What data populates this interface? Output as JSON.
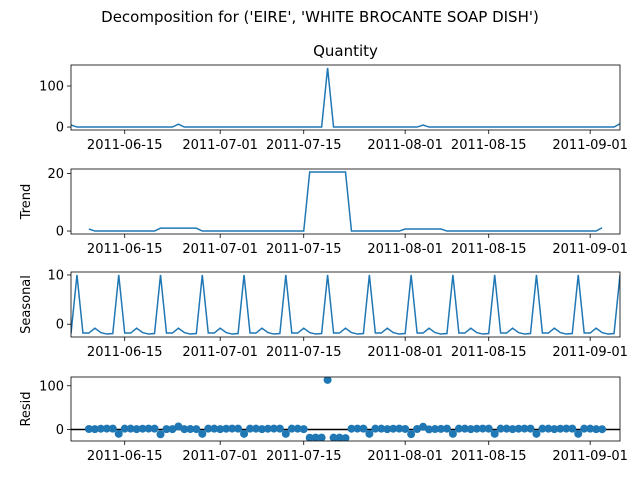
{
  "title": "Decomposition for ('EIRE', 'WHITE BROCANTE SOAP DISH')",
  "chart_data": [
    {
      "type": "line",
      "title": "Quantity",
      "color": "#1f77b4",
      "x": [
        "2011-06-06",
        "2011-06-07",
        "2011-06-08",
        "2011-06-09",
        "2011-06-10",
        "2011-06-11",
        "2011-06-12",
        "2011-06-13",
        "2011-06-14",
        "2011-06-15",
        "2011-06-16",
        "2011-06-17",
        "2011-06-18",
        "2011-06-19",
        "2011-06-20",
        "2011-06-21",
        "2011-06-22",
        "2011-06-23",
        "2011-06-24",
        "2011-06-25",
        "2011-06-26",
        "2011-06-27",
        "2011-06-28",
        "2011-06-29",
        "2011-06-30",
        "2011-07-01",
        "2011-07-02",
        "2011-07-03",
        "2011-07-04",
        "2011-07-05",
        "2011-07-06",
        "2011-07-07",
        "2011-07-08",
        "2011-07-09",
        "2011-07-10",
        "2011-07-11",
        "2011-07-12",
        "2011-07-13",
        "2011-07-14",
        "2011-07-15",
        "2011-07-16",
        "2011-07-17",
        "2011-07-18",
        "2011-07-19",
        "2011-07-20",
        "2011-07-21",
        "2011-07-22",
        "2011-07-23",
        "2011-07-24",
        "2011-07-25",
        "2011-07-26",
        "2011-07-27",
        "2011-07-28",
        "2011-07-29",
        "2011-07-30",
        "2011-07-31",
        "2011-08-01",
        "2011-08-02",
        "2011-08-03",
        "2011-08-04",
        "2011-08-05",
        "2011-08-06",
        "2011-08-07",
        "2011-08-08",
        "2011-08-09",
        "2011-08-10",
        "2011-08-11",
        "2011-08-12",
        "2011-08-13",
        "2011-08-14",
        "2011-08-15",
        "2011-08-16",
        "2011-08-17",
        "2011-08-18",
        "2011-08-19",
        "2011-08-20",
        "2011-08-21",
        "2011-08-22",
        "2011-08-23",
        "2011-08-24",
        "2011-08-25",
        "2011-08-26",
        "2011-08-27",
        "2011-08-28",
        "2011-08-29",
        "2011-08-30",
        "2011-08-31",
        "2011-09-01",
        "2011-09-02",
        "2011-09-03",
        "2011-09-04",
        "2011-09-05",
        "2011-09-06"
      ],
      "values": [
        5,
        0,
        0,
        0,
        0,
        0,
        0,
        0,
        0,
        0,
        0,
        0,
        0,
        0,
        0,
        0,
        0,
        0,
        7,
        0,
        0,
        0,
        0,
        0,
        0,
        0,
        0,
        0,
        0,
        0,
        0,
        0,
        0,
        0,
        0,
        0,
        0,
        0,
        0,
        0,
        0,
        0,
        0,
        144,
        0,
        0,
        0,
        0,
        0,
        0,
        0,
        0,
        0,
        0,
        0,
        0,
        0,
        0,
        0,
        5,
        0,
        0,
        0,
        0,
        0,
        0,
        0,
        0,
        0,
        0,
        0,
        0,
        0,
        0,
        0,
        0,
        0,
        0,
        0,
        0,
        0,
        0,
        0,
        0,
        0,
        0,
        0,
        0,
        0,
        0,
        0,
        0,
        8
      ],
      "xlim": [
        "2011-06-06",
        "2011-09-06"
      ],
      "xticks": [
        "2011-06-15",
        "2011-07-01",
        "2011-07-15",
        "2011-08-01",
        "2011-08-15",
        "2011-09-01"
      ],
      "ylim": [
        -7.2,
        151.2
      ],
      "yticks": [
        0,
        100
      ]
    },
    {
      "type": "line",
      "ylabel": "Trend",
      "color": "#1f77b4",
      "x": [
        "2011-06-06",
        "2011-06-07",
        "2011-06-08",
        "2011-06-09",
        "2011-06-10",
        "2011-06-11",
        "2011-06-12",
        "2011-06-13",
        "2011-06-14",
        "2011-06-15",
        "2011-06-16",
        "2011-06-17",
        "2011-06-18",
        "2011-06-19",
        "2011-06-20",
        "2011-06-21",
        "2011-06-22",
        "2011-06-23",
        "2011-06-24",
        "2011-06-25",
        "2011-06-26",
        "2011-06-27",
        "2011-06-28",
        "2011-06-29",
        "2011-06-30",
        "2011-07-01",
        "2011-07-02",
        "2011-07-03",
        "2011-07-04",
        "2011-07-05",
        "2011-07-06",
        "2011-07-07",
        "2011-07-08",
        "2011-07-09",
        "2011-07-10",
        "2011-07-11",
        "2011-07-12",
        "2011-07-13",
        "2011-07-14",
        "2011-07-15",
        "2011-07-16",
        "2011-07-17",
        "2011-07-18",
        "2011-07-19",
        "2011-07-20",
        "2011-07-21",
        "2011-07-22",
        "2011-07-23",
        "2011-07-24",
        "2011-07-25",
        "2011-07-26",
        "2011-07-27",
        "2011-07-28",
        "2011-07-29",
        "2011-07-30",
        "2011-07-31",
        "2011-08-01",
        "2011-08-02",
        "2011-08-03",
        "2011-08-04",
        "2011-08-05",
        "2011-08-06",
        "2011-08-07",
        "2011-08-08",
        "2011-08-09",
        "2011-08-10",
        "2011-08-11",
        "2011-08-12",
        "2011-08-13",
        "2011-08-14",
        "2011-08-15",
        "2011-08-16",
        "2011-08-17",
        "2011-08-18",
        "2011-08-19",
        "2011-08-20",
        "2011-08-21",
        "2011-08-22",
        "2011-08-23",
        "2011-08-24",
        "2011-08-25",
        "2011-08-26",
        "2011-08-27",
        "2011-08-28",
        "2011-08-29",
        "2011-08-30",
        "2011-08-31",
        "2011-09-01",
        "2011-09-02",
        "2011-09-03",
        "2011-09-04",
        "2011-09-05",
        "2011-09-06"
      ],
      "values": [
        null,
        null,
        null,
        0.71,
        0,
        0,
        0,
        0,
        0,
        0,
        0,
        0,
        0,
        0,
        0,
        1,
        1,
        1,
        1,
        1,
        1,
        1,
        0,
        0,
        0,
        0,
        0,
        0,
        0,
        0,
        0,
        0,
        0,
        0,
        0,
        0,
        0,
        0,
        0,
        0,
        20.57,
        20.57,
        20.57,
        20.57,
        20.57,
        20.57,
        20.57,
        0,
        0,
        0,
        0,
        0,
        0,
        0,
        0,
        0,
        0.71,
        0.71,
        0.71,
        0.71,
        0.71,
        0.71,
        0.71,
        0,
        0,
        0,
        0,
        0,
        0,
        0,
        0,
        0,
        0,
        0,
        0,
        0,
        0,
        0,
        0,
        0,
        0,
        0,
        0,
        0,
        0,
        0,
        0,
        0,
        0,
        1.14,
        null,
        null,
        null
      ],
      "xlim": [
        "2011-06-06",
        "2011-09-06"
      ],
      "xticks": [
        "2011-06-15",
        "2011-07-01",
        "2011-07-15",
        "2011-08-01",
        "2011-08-15",
        "2011-09-01"
      ],
      "ylim": [
        -1.03,
        21.6
      ],
      "yticks": [
        0,
        20
      ]
    },
    {
      "type": "line",
      "ylabel": "Seasonal",
      "color": "#1f77b4",
      "x": [
        "2011-06-06",
        "2011-06-07",
        "2011-06-08",
        "2011-06-09",
        "2011-06-10",
        "2011-06-11",
        "2011-06-12",
        "2011-06-13",
        "2011-06-14",
        "2011-06-15",
        "2011-06-16",
        "2011-06-17",
        "2011-06-18",
        "2011-06-19",
        "2011-06-20",
        "2011-06-21",
        "2011-06-22",
        "2011-06-23",
        "2011-06-24",
        "2011-06-25",
        "2011-06-26",
        "2011-06-27",
        "2011-06-28",
        "2011-06-29",
        "2011-06-30",
        "2011-07-01",
        "2011-07-02",
        "2011-07-03",
        "2011-07-04",
        "2011-07-05",
        "2011-07-06",
        "2011-07-07",
        "2011-07-08",
        "2011-07-09",
        "2011-07-10",
        "2011-07-11",
        "2011-07-12",
        "2011-07-13",
        "2011-07-14",
        "2011-07-15",
        "2011-07-16",
        "2011-07-17",
        "2011-07-18",
        "2011-07-19",
        "2011-07-20",
        "2011-07-21",
        "2011-07-22",
        "2011-07-23",
        "2011-07-24",
        "2011-07-25",
        "2011-07-26",
        "2011-07-27",
        "2011-07-28",
        "2011-07-29",
        "2011-07-30",
        "2011-07-31",
        "2011-08-01",
        "2011-08-02",
        "2011-08-03",
        "2011-08-04",
        "2011-08-05",
        "2011-08-06",
        "2011-08-07",
        "2011-08-08",
        "2011-08-09",
        "2011-08-10",
        "2011-08-11",
        "2011-08-12",
        "2011-08-13",
        "2011-08-14",
        "2011-08-15",
        "2011-08-16",
        "2011-08-17",
        "2011-08-18",
        "2011-08-19",
        "2011-08-20",
        "2011-08-21",
        "2011-08-22",
        "2011-08-23",
        "2011-08-24",
        "2011-08-25",
        "2011-08-26",
        "2011-08-27",
        "2011-08-28",
        "2011-08-29",
        "2011-08-30",
        "2011-08-31",
        "2011-09-01",
        "2011-09-02",
        "2011-09-03",
        "2011-09-04",
        "2011-09-05",
        "2011-09-06"
      ],
      "values": [
        -1.9,
        10,
        -1.8,
        -1.8,
        -0.8,
        -1.7,
        -2.0,
        -1.9,
        10,
        -1.8,
        -1.8,
        -0.8,
        -1.7,
        -2.0,
        -1.9,
        10,
        -1.8,
        -1.8,
        -0.8,
        -1.7,
        -2.0,
        -1.9,
        10,
        -1.8,
        -1.8,
        -0.8,
        -1.7,
        -2.0,
        -1.9,
        10,
        -1.8,
        -1.8,
        -0.8,
        -1.7,
        -2.0,
        -1.9,
        10,
        -1.8,
        -1.8,
        -0.8,
        -1.7,
        -2.0,
        -1.9,
        10,
        -1.8,
        -1.8,
        -0.8,
        -1.7,
        -2.0,
        -1.9,
        10,
        -1.8,
        -1.8,
        -0.8,
        -1.7,
        -2.0,
        -1.9,
        10,
        -1.8,
        -1.8,
        -0.8,
        -1.7,
        -2.0,
        -1.9,
        10,
        -1.8,
        -1.8,
        -0.8,
        -1.7,
        -2.0,
        -1.9,
        10,
        -1.8,
        -1.8,
        -0.8,
        -1.7,
        -2.0,
        -1.9,
        10,
        -1.8,
        -1.8,
        -0.8,
        -1.7,
        -2.0,
        -1.9,
        10,
        -1.8,
        -1.8,
        -0.8,
        -1.7,
        -2.0,
        -1.9,
        10
      ],
      "xlim": [
        "2011-06-06",
        "2011-09-06"
      ],
      "xticks": [
        "2011-06-15",
        "2011-07-01",
        "2011-07-15",
        "2011-08-01",
        "2011-08-15",
        "2011-09-01"
      ],
      "ylim": [
        -2.6,
        10.6
      ],
      "yticks": [
        0,
        10
      ]
    },
    {
      "type": "scatter",
      "ylabel": "Resid",
      "color": "#1f77b4",
      "x": [
        "2011-06-06",
        "2011-06-07",
        "2011-06-08",
        "2011-06-09",
        "2011-06-10",
        "2011-06-11",
        "2011-06-12",
        "2011-06-13",
        "2011-06-14",
        "2011-06-15",
        "2011-06-16",
        "2011-06-17",
        "2011-06-18",
        "2011-06-19",
        "2011-06-20",
        "2011-06-21",
        "2011-06-22",
        "2011-06-23",
        "2011-06-24",
        "2011-06-25",
        "2011-06-26",
        "2011-06-27",
        "2011-06-28",
        "2011-06-29",
        "2011-06-30",
        "2011-07-01",
        "2011-07-02",
        "2011-07-03",
        "2011-07-04",
        "2011-07-05",
        "2011-07-06",
        "2011-07-07",
        "2011-07-08",
        "2011-07-09",
        "2011-07-10",
        "2011-07-11",
        "2011-07-12",
        "2011-07-13",
        "2011-07-14",
        "2011-07-15",
        "2011-07-16",
        "2011-07-17",
        "2011-07-18",
        "2011-07-19",
        "2011-07-20",
        "2011-07-21",
        "2011-07-22",
        "2011-07-23",
        "2011-07-24",
        "2011-07-25",
        "2011-07-26",
        "2011-07-27",
        "2011-07-28",
        "2011-07-29",
        "2011-07-30",
        "2011-07-31",
        "2011-08-01",
        "2011-08-02",
        "2011-08-03",
        "2011-08-04",
        "2011-08-05",
        "2011-08-06",
        "2011-08-07",
        "2011-08-08",
        "2011-08-09",
        "2011-08-10",
        "2011-08-11",
        "2011-08-12",
        "2011-08-13",
        "2011-08-14",
        "2011-08-15",
        "2011-08-16",
        "2011-08-17",
        "2011-08-18",
        "2011-08-19",
        "2011-08-20",
        "2011-08-21",
        "2011-08-22",
        "2011-08-23",
        "2011-08-24",
        "2011-08-25",
        "2011-08-26",
        "2011-08-27",
        "2011-08-28",
        "2011-08-29",
        "2011-08-30",
        "2011-08-31",
        "2011-09-01",
        "2011-09-02",
        "2011-09-03",
        "2011-09-04",
        "2011-09-05",
        "2011-09-06"
      ],
      "values": [
        null,
        null,
        null,
        1.09,
        0.8,
        1.7,
        2.0,
        1.9,
        -10,
        1.8,
        1.8,
        0.8,
        1.7,
        2.0,
        1.9,
        -11,
        0.8,
        0.8,
        6.8,
        0.7,
        1.0,
        0.9,
        -10,
        1.8,
        1.8,
        0.8,
        1.7,
        2.0,
        1.9,
        -10,
        1.8,
        1.8,
        0.8,
        1.7,
        2.0,
        1.9,
        -10,
        1.8,
        1.8,
        0.8,
        -18.87,
        -18.57,
        -18.67,
        113.43,
        -18.77,
        -18.77,
        -19.77,
        1.7,
        2.0,
        1.9,
        -10,
        1.8,
        1.8,
        0.8,
        1.7,
        2.0,
        1.19,
        -10.71,
        1.09,
        6.09,
        0.09,
        0.99,
        1.29,
        1.9,
        -10,
        1.8,
        1.8,
        0.8,
        1.7,
        2.0,
        1.9,
        -10,
        1.8,
        1.8,
        0.8,
        1.7,
        2.0,
        1.9,
        -10,
        1.8,
        1.8,
        0.8,
        1.7,
        2.0,
        1.9,
        -10,
        1.8,
        1.8,
        0.8,
        0.56,
        null,
        null,
        null
      ],
      "xlim": [
        "2011-06-06",
        "2011-09-06"
      ],
      "xticks": [
        "2011-06-15",
        "2011-07-01",
        "2011-07-15",
        "2011-08-01",
        "2011-08-15",
        "2011-09-01"
      ],
      "ylim": [
        -26.4,
        120.1
      ],
      "yticks": [
        0,
        100
      ]
    }
  ]
}
